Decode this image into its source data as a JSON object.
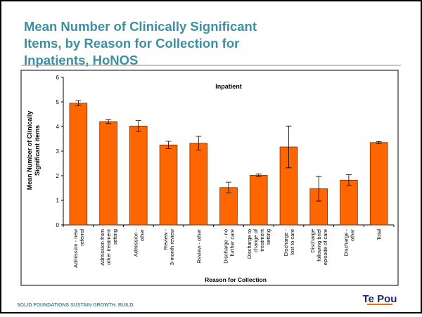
{
  "slide_title": "Mean Number of Clinically Significant Items, by Reason for Collection for Inpatients, HoNOS",
  "footer": "SOLID FOUNDATIONS SUSTAIN GROWTH. BUILD.",
  "logo": "Te Pou",
  "chart_data": {
    "type": "bar",
    "title": "Inpatient",
    "y_label": "Mean Number of Clinically Significant items",
    "x_label": "Reason for Collection",
    "categories": [
      "Admission - new referral",
      "Admission from other treatment setting",
      "Admission - other",
      "Review - 3-month review",
      "Review - other",
      "Discharge - no further care",
      "Discharge to change of treatment setting",
      "Discharge - lost to care",
      "Discharge following brief episode of care",
      "Discharge - other",
      "Total"
    ],
    "values": [
      4.95,
      4.2,
      4.02,
      3.25,
      3.32,
      1.52,
      2.02,
      3.17,
      1.47,
      1.82,
      3.35
    ],
    "errors": [
      0.1,
      0.08,
      0.22,
      0.15,
      0.28,
      0.22,
      0.05,
      0.85,
      0.5,
      0.22,
      0.04
    ],
    "color": "#ff6600",
    "ylim": [
      0,
      6
    ],
    "yticks": [
      0,
      1,
      2,
      3,
      4,
      5,
      6
    ],
    "grid": false
  }
}
